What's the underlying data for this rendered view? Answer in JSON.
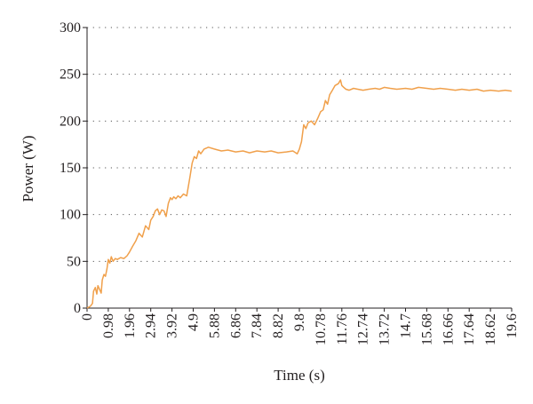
{
  "chart_data": {
    "type": "line",
    "xlabel": "Time (s)",
    "ylabel": "Power (W)",
    "xlim": [
      0,
      19.6
    ],
    "ylim": [
      0,
      300
    ],
    "y_ticks": [
      "0",
      "50",
      "100",
      "150",
      "200",
      "250",
      "300"
    ],
    "x_ticks": [
      "0",
      "0.98",
      "1.96",
      "2.94",
      "3.92",
      "4.9",
      "5.88",
      "6.86",
      "7.84",
      "8.82",
      "9.8",
      "10.78",
      "11.76",
      "12.74",
      "13.72",
      "14.7",
      "15.68",
      "16.66",
      "17.64",
      "18.62",
      "19.6"
    ],
    "grid": "horizontal dotted",
    "series": [
      {
        "color": "#f0a04b",
        "x": [
          0,
          0.15,
          0.25,
          0.3,
          0.38,
          0.45,
          0.5,
          0.58,
          0.65,
          0.7,
          0.78,
          0.85,
          0.92,
          0.98,
          1.05,
          1.12,
          1.2,
          1.3,
          1.4,
          1.55,
          1.7,
          1.85,
          1.96,
          2.1,
          2.25,
          2.4,
          2.55,
          2.7,
          2.85,
          2.94,
          3.05,
          3.15,
          3.25,
          3.35,
          3.45,
          3.55,
          3.65,
          3.75,
          3.85,
          3.92,
          4.0,
          4.1,
          4.2,
          4.3,
          4.45,
          4.6,
          4.75,
          4.85,
          4.95,
          5.05,
          5.15,
          5.25,
          5.4,
          5.6,
          5.88,
          6.2,
          6.5,
          6.86,
          7.2,
          7.5,
          7.84,
          8.2,
          8.5,
          8.82,
          9.2,
          9.5,
          9.7,
          9.8,
          9.9,
          10.0,
          10.1,
          10.2,
          10.35,
          10.5,
          10.65,
          10.78,
          10.9,
          11.0,
          11.1,
          11.2,
          11.3,
          11.45,
          11.6,
          11.7,
          11.76,
          11.85,
          11.95,
          12.1,
          12.3,
          12.5,
          12.74,
          13.0,
          13.3,
          13.5,
          13.72,
          14.0,
          14.3,
          14.7,
          15.0,
          15.3,
          15.68,
          16.0,
          16.3,
          16.66,
          17.0,
          17.3,
          17.64,
          18.0,
          18.3,
          18.62,
          19.0,
          19.3,
          19.6
        ],
        "values": [
          0,
          2,
          5,
          18,
          22,
          15,
          24,
          20,
          16,
          30,
          36,
          34,
          42,
          52,
          48,
          55,
          50,
          53,
          52,
          54,
          53,
          56,
          60,
          66,
          72,
          80,
          76,
          88,
          84,
          94,
          98,
          104,
          106,
          100,
          105,
          104,
          98,
          112,
          118,
          116,
          119,
          117,
          120,
          118,
          122,
          120,
          140,
          155,
          162,
          160,
          168,
          165,
          170,
          172,
          170,
          168,
          169,
          167,
          168,
          166,
          168,
          167,
          168,
          166,
          167,
          168,
          165,
          170,
          178,
          196,
          192,
          198,
          200,
          196,
          203,
          210,
          212,
          222,
          218,
          228,
          232,
          238,
          240,
          244,
          238,
          236,
          234,
          233,
          235,
          234,
          233,
          234,
          235,
          234,
          236,
          235,
          234,
          235,
          234,
          236,
          235,
          234,
          235,
          234,
          233,
          234,
          233,
          234,
          232,
          233,
          232,
          233,
          232
        ]
      }
    ]
  }
}
